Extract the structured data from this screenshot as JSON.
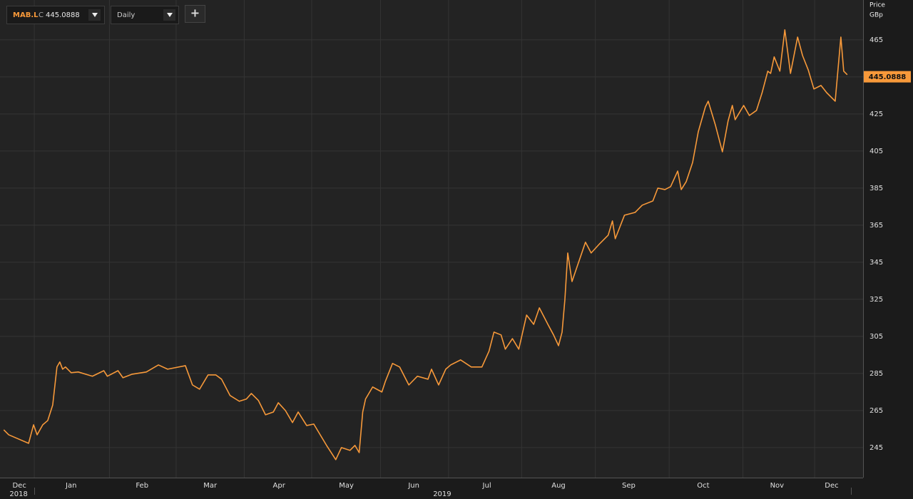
{
  "toolbar": {
    "symbol": "MAB.L",
    "close_prefix": "C",
    "interval": "Daily",
    "add_button": "+"
  },
  "chart_data": {
    "type": "line",
    "y_axis_label": "Price",
    "y_axis_unit": "GBp",
    "last_price": 445.0888,
    "color": "#f7993a",
    "grid": true,
    "xlim": [
      0.517,
      12.683
    ],
    "ylim": [
      228.8,
      486.5
    ],
    "yticks": [
      245,
      265,
      285,
      305,
      325,
      345,
      365,
      385,
      405,
      425,
      445,
      465
    ],
    "xgrid": [
      1,
      2.06,
      3.0,
      3.96,
      4.91,
      5.88,
      6.84,
      7.87,
      8.91,
      9.95,
      10.99,
      12.0
    ],
    "xticks": [
      {
        "value": 0.79,
        "label": "Dec"
      },
      {
        "value": 1.52,
        "label": "Jan"
      },
      {
        "value": 2.52,
        "label": "Feb"
      },
      {
        "value": 3.48,
        "label": "Mar"
      },
      {
        "value": 4.45,
        "label": "Apr"
      },
      {
        "value": 5.4,
        "label": "May"
      },
      {
        "value": 6.35,
        "label": "Jun"
      },
      {
        "value": 7.38,
        "label": "Jul"
      },
      {
        "value": 8.39,
        "label": "Aug"
      },
      {
        "value": 9.38,
        "label": "Sep"
      },
      {
        "value": 10.43,
        "label": "Oct"
      },
      {
        "value": 11.47,
        "label": "Nov"
      },
      {
        "value": 12.24,
        "label": "Dec"
      }
    ],
    "year_labels": [
      {
        "value": 0.78,
        "label": "2018"
      },
      {
        "value": 6.75,
        "label": "2019"
      }
    ],
    "x": [
      0.57,
      0.64,
      0.92,
      0.99,
      1.04,
      1.12,
      1.19,
      1.26,
      1.32,
      1.36,
      1.4,
      1.44,
      1.52,
      1.62,
      1.82,
      1.98,
      2.03,
      2.18,
      2.25,
      2.38,
      2.58,
      2.75,
      2.88,
      3.13,
      3.23,
      3.33,
      3.45,
      3.56,
      3.64,
      3.76,
      3.89,
      3.99,
      4.06,
      4.16,
      4.26,
      4.37,
      4.44,
      4.54,
      4.64,
      4.72,
      4.84,
      4.94,
      5.12,
      5.25,
      5.33,
      5.45,
      5.52,
      5.58,
      5.63,
      5.67,
      5.77,
      5.9,
      5.95,
      6.05,
      6.15,
      6.28,
      6.4,
      6.55,
      6.6,
      6.7,
      6.8,
      6.87,
      7.01,
      7.16,
      7.31,
      7.41,
      7.48,
      7.58,
      7.64,
      7.74,
      7.83,
      7.94,
      8.04,
      8.12,
      8.24,
      8.32,
      8.39,
      8.44,
      8.48,
      8.52,
      8.58,
      8.77,
      8.85,
      8.97,
      9.09,
      9.15,
      9.19,
      9.32,
      9.47,
      9.57,
      9.72,
      9.79,
      9.89,
      9.97,
      10.07,
      10.12,
      10.19,
      10.28,
      10.36,
      10.46,
      10.5,
      10.6,
      10.7,
      10.78,
      10.84,
      10.88,
      11.0,
      11.08,
      11.18,
      11.26,
      11.34,
      11.38,
      11.43,
      11.51,
      11.58,
      11.66,
      11.76,
      11.83,
      11.91,
      11.99,
      12.09,
      12.17,
      12.29,
      12.37,
      12.41,
      12.46
    ],
    "values": [
      254.6,
      251.9,
      247.3,
      257.3,
      251.9,
      257.3,
      259.6,
      268,
      288.5,
      291.2,
      287.3,
      288.5,
      285.4,
      285.8,
      283.5,
      286.5,
      283.5,
      286.5,
      282.7,
      284.6,
      285.8,
      289.6,
      287.3,
      289.2,
      278.8,
      276.5,
      284.2,
      284.2,
      281.9,
      273.1,
      270,
      271.2,
      274.2,
      270.4,
      262.7,
      264.2,
      269.2,
      265,
      258.5,
      264.2,
      256.9,
      257.7,
      246.2,
      238.5,
      245,
      243.5,
      246.2,
      242.3,
      264.2,
      271.2,
      277.7,
      275,
      280.8,
      290.4,
      288.5,
      278.8,
      283.5,
      281.9,
      287.3,
      278.8,
      287.3,
      289.6,
      292.3,
      288.5,
      288.5,
      297,
      307.3,
      305.8,
      298.1,
      303.8,
      298.1,
      316.5,
      311.5,
      320.4,
      311.5,
      305.8,
      300,
      307.3,
      325,
      350,
      334.6,
      355.8,
      350,
      355,
      359.6,
      367.3,
      357.7,
      370.4,
      371.9,
      375.8,
      378.1,
      385,
      384.2,
      385.8,
      394.2,
      384.2,
      388.5,
      398.8,
      415.4,
      428.8,
      431.9,
      419.2,
      404.6,
      421.2,
      429.6,
      421.9,
      429.6,
      424.2,
      426.9,
      436.5,
      448.1,
      446.9,
      455.8,
      448.1,
      470.4,
      446.9,
      466.5,
      456.5,
      448.8,
      438.5,
      440.4,
      436.5,
      431.9,
      466.5,
      448.1,
      446.2
    ]
  }
}
